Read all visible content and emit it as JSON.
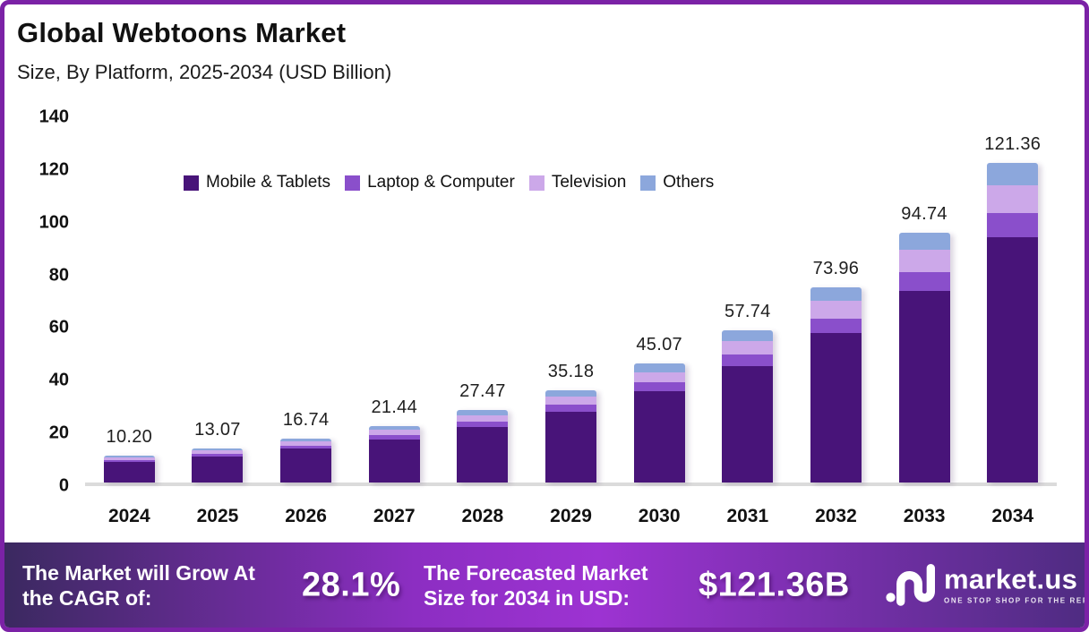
{
  "header": {
    "title": "Global Webtoons Market",
    "subtitle": "Size, By Platform, 2025-2034 (USD Billion)"
  },
  "chart_data": {
    "type": "bar",
    "stacked": true,
    "categories": [
      "2024",
      "2025",
      "2026",
      "2027",
      "2028",
      "2029",
      "2030",
      "2031",
      "2032",
      "2033",
      "2034"
    ],
    "totals": [
      10.2,
      13.07,
      16.74,
      21.44,
      27.47,
      35.18,
      45.07,
      57.74,
      73.96,
      94.74,
      121.36
    ],
    "total_labels": [
      "10.20",
      "13.07",
      "16.74",
      "21.44",
      "27.47",
      "35.18",
      "45.07",
      "57.74",
      "73.96",
      "94.74",
      "121.36"
    ],
    "series": [
      {
        "name": "Mobile & Tablets",
        "color": "#481479",
        "values": [
          7.81,
          10.01,
          12.82,
          16.42,
          21.04,
          26.95,
          34.52,
          44.23,
          56.65,
          72.57,
          92.96
        ]
      },
      {
        "name": "Laptop & Computer",
        "color": "#8A4FCB",
        "values": [
          0.78,
          0.99,
          1.27,
          1.63,
          2.09,
          2.67,
          3.43,
          4.39,
          5.62,
          7.2,
          9.22
        ]
      },
      {
        "name": "Television",
        "color": "#CCA8E9",
        "values": [
          0.91,
          1.16,
          1.49,
          1.91,
          2.44,
          3.13,
          4.01,
          5.14,
          6.58,
          8.43,
          10.8
        ]
      },
      {
        "name": "Others",
        "color": "#8CA7DC",
        "values": [
          0.7,
          0.91,
          1.16,
          1.48,
          1.9,
          2.43,
          3.11,
          3.98,
          5.11,
          6.54,
          8.38
        ]
      }
    ],
    "title": "Global Webtoons Market Size, By Platform, 2025-2034 (USD Billion)",
    "xlabel": "",
    "ylabel": "",
    "ylim": [
      0,
      140
    ],
    "yticks": [
      0,
      20,
      40,
      60,
      80,
      100,
      120,
      140
    ],
    "grid": false,
    "legend_position": "top-inside"
  },
  "footer": {
    "cagr_label": "The Market will Grow At the CAGR of:",
    "cagr_value": "28.1%",
    "forecast_label": "The Forecasted Market Size for 2034 in USD:",
    "forecast_value": "$121.36B",
    "brand_name": "market.us",
    "brand_tagline": "ONE STOP SHOP FOR THE REPORTS"
  },
  "colors": {
    "frame_border": "#7B22A6",
    "baseline": "#DBDBDB",
    "text": "#111111",
    "footer_gradient_left": "#3B2960",
    "footer_gradient_mid": "#9D33D2",
    "footer_gradient_right": "#4F2C82"
  }
}
